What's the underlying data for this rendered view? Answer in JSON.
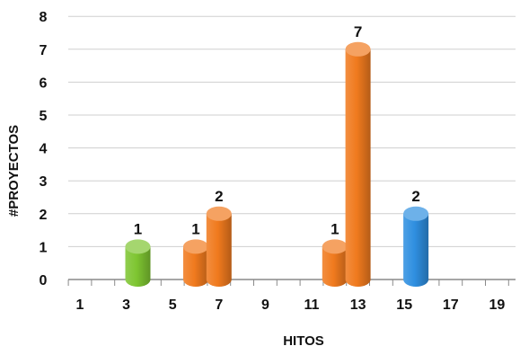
{
  "chart_data": {
    "type": "bar",
    "title": "",
    "xlabel": "HITOS",
    "ylabel": "#PROYECTOS",
    "ylim": [
      0,
      8
    ],
    "yticks": [
      "0",
      "1",
      "2",
      "3",
      "4",
      "5",
      "6",
      "7",
      "8"
    ],
    "xticks": [
      "1",
      "3",
      "5",
      "7",
      "9",
      "11",
      "13",
      "15",
      "17",
      "19"
    ],
    "grid": true,
    "legend": "none",
    "bars": [
      {
        "x": 3.5,
        "value": 1,
        "label": "1",
        "color": "#7ec531"
      },
      {
        "x": 6.0,
        "value": 1,
        "label": "1",
        "color": "#f07a1e"
      },
      {
        "x": 7.0,
        "value": 2,
        "label": "2",
        "color": "#f07a1e"
      },
      {
        "x": 12.0,
        "value": 1,
        "label": "1",
        "color": "#f07a1e"
      },
      {
        "x": 13.0,
        "value": 7,
        "label": "7",
        "color": "#f07a1e"
      },
      {
        "x": 15.5,
        "value": 2,
        "label": "2",
        "color": "#2f8fe0"
      }
    ]
  }
}
